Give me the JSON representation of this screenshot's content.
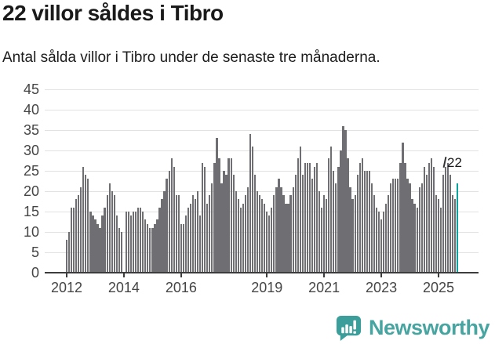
{
  "header": {
    "title": "22 villor såldes i Tibro",
    "subtitle": "Antal sålda villor i Tibro under de senaste tre månaderna."
  },
  "chart_data": {
    "type": "bar",
    "title": "22 villor såldes i Tibro",
    "x_unit": "month",
    "start_month": "2012-01",
    "end_month": "2025-09",
    "values": [
      8,
      10,
      16,
      16,
      18,
      19,
      21,
      26,
      24,
      23,
      15,
      14,
      13,
      12,
      11,
      14,
      16,
      19,
      22,
      20,
      19,
      14,
      11,
      10,
      0,
      15,
      15,
      14,
      15,
      15,
      16,
      16,
      15,
      13,
      12,
      11,
      11,
      12,
      13,
      16,
      18,
      20,
      23,
      25,
      28,
      26,
      19,
      19,
      12,
      12,
      14,
      16,
      17,
      19,
      18,
      20,
      14,
      27,
      26,
      17,
      19,
      22,
      27,
      33,
      28,
      22,
      25,
      24,
      28,
      28,
      24,
      20,
      18,
      16,
      17,
      19,
      21,
      34,
      31,
      24,
      20,
      19,
      18,
      17,
      15,
      14,
      16,
      19,
      21,
      23,
      21,
      19,
      17,
      17,
      19,
      21,
      24,
      28,
      31,
      24,
      27,
      27,
      27,
      23,
      26,
      27,
      20,
      16,
      19,
      18,
      28,
      31,
      25,
      22,
      26,
      30,
      36,
      35,
      28,
      21,
      18,
      19,
      24,
      27,
      28,
      25,
      25,
      25,
      22,
      19,
      16,
      15,
      13,
      15,
      17,
      19,
      22,
      23,
      23,
      23,
      27,
      32,
      27,
      23,
      22,
      18,
      17,
      16,
      21,
      22,
      26,
      24,
      27,
      28,
      26,
      19,
      18,
      16,
      24,
      26,
      27,
      24,
      19,
      18,
      22
    ],
    "ylim": [
      0,
      45
    ],
    "yticks": [
      0,
      5,
      10,
      15,
      20,
      25,
      30,
      35,
      40,
      45
    ],
    "xticks": [
      {
        "label": "2012",
        "month_index": 0
      },
      {
        "label": "2014",
        "month_index": 24
      },
      {
        "label": "2016",
        "month_index": 48
      },
      {
        "label": "2019",
        "month_index": 84
      },
      {
        "label": "2021",
        "month_index": 108
      },
      {
        "label": "2023",
        "month_index": 132
      },
      {
        "label": "2025",
        "month_index": 156
      }
    ],
    "grid": true,
    "legend": "none",
    "bar_color": "#6f6e73",
    "highlight": {
      "month": "2025-09",
      "value": 22,
      "label": "22",
      "color": "#0aa39d"
    }
  },
  "footer": {
    "logo_text": "Newsworthy",
    "logo_text_color": "#46a4a1",
    "logo_icon_color": "#3b9e9a",
    "logo_icon": "bar-chart-speech-bubble"
  }
}
